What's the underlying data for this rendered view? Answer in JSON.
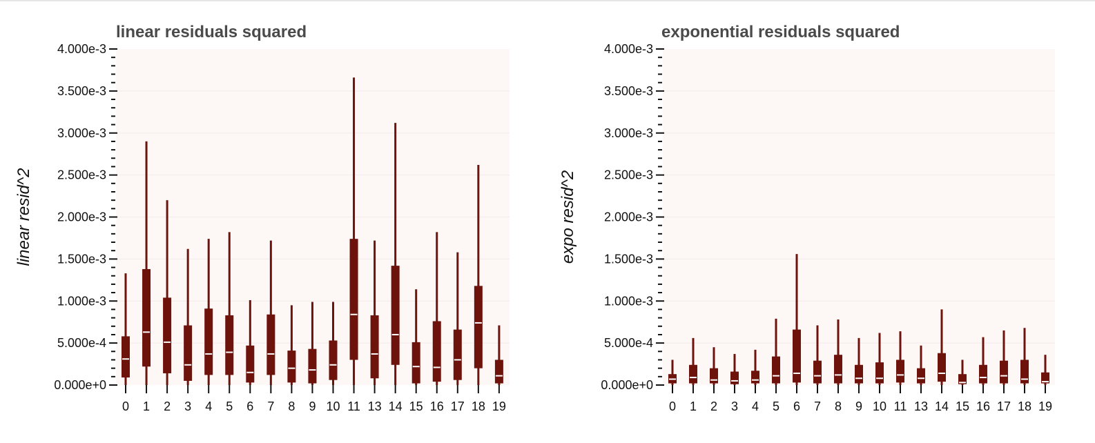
{
  "chart_data": [
    {
      "type": "box",
      "title": "linear residuals squared",
      "xlabel": "",
      "ylabel": "linear resid^2",
      "ylim": [
        0,
        0.004
      ],
      "y_tick_labels": [
        "0.000e+0",
        "5.000e-4",
        "1.000e-3",
        "1.500e-3",
        "2.000e-3",
        "2.500e-3",
        "3.000e-3",
        "3.500e-3",
        "4.000e-3"
      ],
      "categories": [
        "0",
        "1",
        "2",
        "3",
        "4",
        "5",
        "6",
        "7",
        "8",
        "9",
        "10",
        "11",
        "13",
        "14",
        "15",
        "16",
        "17",
        "18",
        "19"
      ],
      "boxes": [
        {
          "min": 0.0,
          "q1": 9e-05,
          "median": 0.00031,
          "q3": 0.00058,
          "max": 0.00133
        },
        {
          "min": 0.0,
          "q1": 0.00022,
          "median": 0.00063,
          "q3": 0.00138,
          "max": 0.0029
        },
        {
          "min": 0.0,
          "q1": 0.00014,
          "median": 0.00051,
          "q3": 0.00104,
          "max": 0.0022
        },
        {
          "min": 0.0,
          "q1": 5e-05,
          "median": 0.00024,
          "q3": 0.00071,
          "max": 0.00162
        },
        {
          "min": 0.0,
          "q1": 0.00012,
          "median": 0.00037,
          "q3": 0.00091,
          "max": 0.00174
        },
        {
          "min": 0.0,
          "q1": 0.00012,
          "median": 0.00039,
          "q3": 0.00083,
          "max": 0.00182
        },
        {
          "min": 0.0,
          "q1": 3e-05,
          "median": 0.00015,
          "q3": 0.00047,
          "max": 0.00101
        },
        {
          "min": 0.0,
          "q1": 0.00012,
          "median": 0.00037,
          "q3": 0.00084,
          "max": 0.00172
        },
        {
          "min": 0.0,
          "q1": 3e-05,
          "median": 0.0002,
          "q3": 0.00041,
          "max": 0.00095
        },
        {
          "min": 0.0,
          "q1": 2e-05,
          "median": 0.00018,
          "q3": 0.00043,
          "max": 0.00099
        },
        {
          "min": 0.0,
          "q1": 6e-05,
          "median": 0.00024,
          "q3": 0.00053,
          "max": 0.00099
        },
        {
          "min": 0.0,
          "q1": 0.0003,
          "median": 0.00084,
          "q3": 0.00174,
          "max": 0.00366
        },
        {
          "min": 0.0,
          "q1": 8e-05,
          "median": 0.00037,
          "q3": 0.00083,
          "max": 0.00172
        },
        {
          "min": 0.0,
          "q1": 0.00024,
          "median": 0.0006,
          "q3": 0.00142,
          "max": 0.00312
        },
        {
          "min": 0.0,
          "q1": 2e-05,
          "median": 0.00022,
          "q3": 0.00051,
          "max": 0.00114
        },
        {
          "min": 0.0,
          "q1": 4e-05,
          "median": 0.00021,
          "q3": 0.00076,
          "max": 0.00182
        },
        {
          "min": 0.0,
          "q1": 6e-05,
          "median": 0.0003,
          "q3": 0.00066,
          "max": 0.00158
        },
        {
          "min": 0.0,
          "q1": 0.0002,
          "median": 0.00074,
          "q3": 0.00118,
          "max": 0.00262
        },
        {
          "min": 0.0,
          "q1": 2e-05,
          "median": 0.00011,
          "q3": 0.0003,
          "max": 0.00071
        }
      ],
      "grid": true
    },
    {
      "type": "box",
      "title": "exponential residuals squared",
      "xlabel": "",
      "ylabel": "expo resid^2",
      "ylim": [
        0,
        0.004
      ],
      "y_tick_labels": [
        "0.000e+0",
        "5.000e-4",
        "1.000e-3",
        "1.500e-3",
        "2.000e-3",
        "2.500e-3",
        "3.000e-3",
        "3.500e-3",
        "4.000e-3"
      ],
      "categories": [
        "0",
        "1",
        "2",
        "3",
        "4",
        "5",
        "6",
        "7",
        "8",
        "9",
        "10",
        "11",
        "13",
        "14",
        "15",
        "16",
        "17",
        "18",
        "19"
      ],
      "boxes": [
        {
          "min": 0.0,
          "q1": 2e-05,
          "median": 7e-05,
          "q3": 0.00013,
          "max": 0.0003
        },
        {
          "min": 0.0,
          "q1": 2e-05,
          "median": 9e-05,
          "q3": 0.00024,
          "max": 0.00056
        },
        {
          "min": 0.0,
          "q1": 2e-05,
          "median": 6e-05,
          "q3": 0.0002,
          "max": 0.00045
        },
        {
          "min": 0.0,
          "q1": 1e-05,
          "median": 5e-05,
          "q3": 0.00016,
          "max": 0.00037
        },
        {
          "min": 0.0,
          "q1": 2e-05,
          "median": 6e-05,
          "q3": 0.00017,
          "max": 0.00042
        },
        {
          "min": 0.0,
          "q1": 2e-05,
          "median": 0.00011,
          "q3": 0.00034,
          "max": 0.00079
        },
        {
          "min": 0.0,
          "q1": 3e-05,
          "median": 0.00014,
          "q3": 0.00066,
          "max": 0.00156
        },
        {
          "min": 0.0,
          "q1": 2e-05,
          "median": 0.00011,
          "q3": 0.00029,
          "max": 0.00071
        },
        {
          "min": 0.0,
          "q1": 2e-05,
          "median": 0.00012,
          "q3": 0.00036,
          "max": 0.00078
        },
        {
          "min": 0.0,
          "q1": 2e-05,
          "median": 8e-05,
          "q3": 0.00024,
          "max": 0.00056
        },
        {
          "min": 0.0,
          "q1": 2e-05,
          "median": 8e-05,
          "q3": 0.00027,
          "max": 0.00062
        },
        {
          "min": 0.0,
          "q1": 3e-05,
          "median": 0.00012,
          "q3": 0.0003,
          "max": 0.00064
        },
        {
          "min": 0.0,
          "q1": 2e-05,
          "median": 8e-05,
          "q3": 0.0002,
          "max": 0.00047
        },
        {
          "min": 0.0,
          "q1": 4e-05,
          "median": 0.00014,
          "q3": 0.00038,
          "max": 0.0009
        },
        {
          "min": 0.0,
          "q1": 1e-05,
          "median": 3e-05,
          "q3": 0.00013,
          "max": 0.0003
        },
        {
          "min": 0.0,
          "q1": 2e-05,
          "median": 9e-05,
          "q3": 0.00024,
          "max": 0.00057
        },
        {
          "min": 0.0,
          "q1": 2e-05,
          "median": 0.00011,
          "q3": 0.00029,
          "max": 0.00065
        },
        {
          "min": 0.0,
          "q1": 2e-05,
          "median": 7e-05,
          "q3": 0.0003,
          "max": 0.00068
        },
        {
          "min": 0.0,
          "q1": 2e-05,
          "median": 4e-05,
          "q3": 0.00015,
          "max": 0.00036
        }
      ],
      "grid": true
    }
  ],
  "colors": {
    "box": "#6e120c",
    "median": "#ffffff",
    "plot_background": "#fdf7f6",
    "gridline": "#f3eaea",
    "axis": "#111111",
    "title": "#4a4a4a"
  }
}
